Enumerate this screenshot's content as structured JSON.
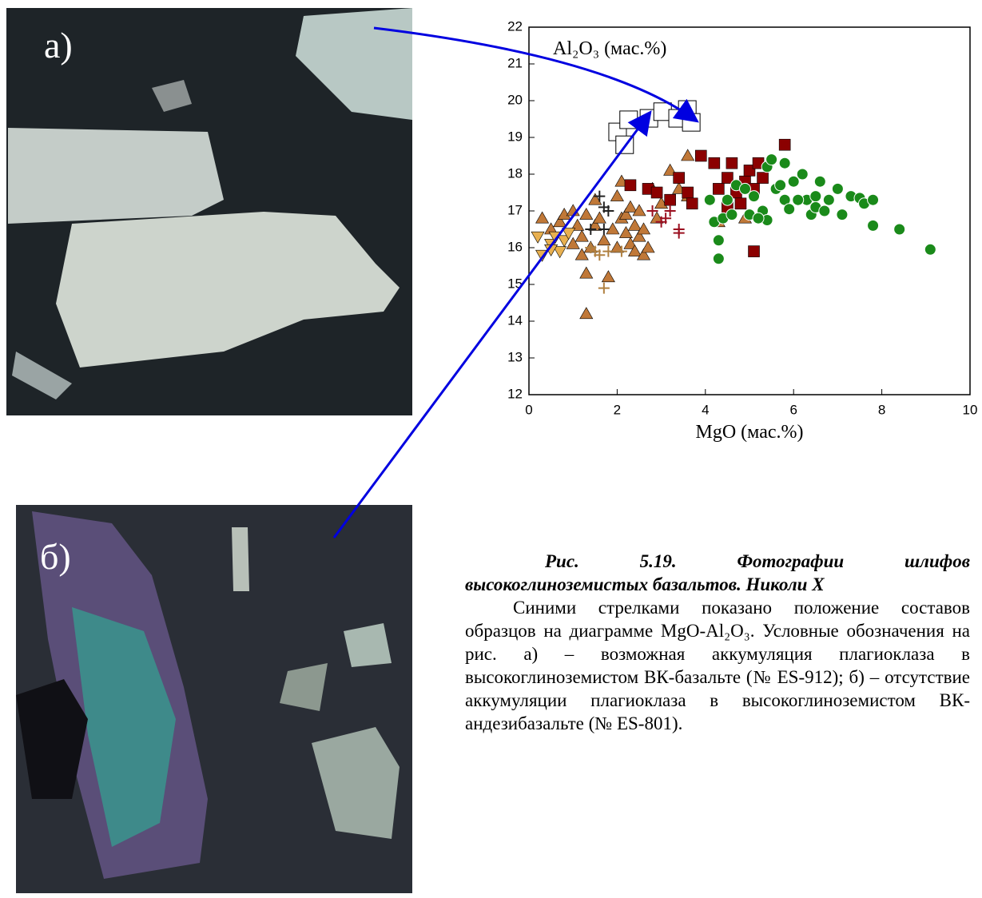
{
  "photos": {
    "a_label": "а)",
    "b_label": "б)"
  },
  "chart_data": {
    "type": "scatter",
    "xlabel": "MgO (мас.%)",
    "ylabel": "Al₂O₃ (мас.%)",
    "xlim": [
      0,
      10
    ],
    "xticks": [
      0,
      2,
      4,
      6,
      8,
      10
    ],
    "ylim": [
      12,
      22
    ],
    "yticks": [
      12,
      13,
      14,
      15,
      16,
      17,
      18,
      19,
      20,
      21,
      22
    ],
    "series": [
      {
        "color": "#ffffff",
        "marker": "big-square",
        "x": [
          2.01,
          2.17,
          2.26,
          2.72,
          3.03,
          3.37,
          3.59,
          3.68
        ],
        "values": [
          19.15,
          18.8,
          19.48,
          19.52,
          19.7,
          19.52,
          19.76,
          19.41
        ]
      },
      {
        "color": "#c07838",
        "marker": "triangle",
        "x": [
          0.3,
          0.5,
          0.7,
          0.8,
          1.0,
          1.1,
          1.2,
          1.3,
          1.3,
          1.3,
          1.4,
          1.5,
          1.5,
          1.6,
          1.7,
          1.8,
          1.9,
          2.0,
          2.0,
          2.1,
          2.2,
          2.2,
          2.3,
          2.3,
          2.4,
          2.4,
          2.5,
          2.5,
          2.6,
          2.6,
          2.7,
          2.8,
          1.0,
          1.2,
          2.1,
          3.0,
          3.2,
          3.4,
          3.6,
          3.6,
          4.3,
          4.9,
          2.9
        ],
        "values": [
          16.8,
          16.5,
          16.7,
          16.9,
          17.0,
          16.6,
          16.3,
          16.9,
          15.3,
          14.2,
          16.0,
          16.6,
          17.3,
          16.8,
          16.2,
          15.2,
          16.5,
          17.4,
          16.0,
          16.8,
          16.4,
          16.9,
          16.1,
          17.1,
          16.6,
          15.9,
          16.3,
          17.0,
          16.5,
          15.8,
          16.0,
          17.6,
          16.1,
          15.8,
          17.8,
          17.2,
          18.1,
          17.6,
          18.5,
          17.4,
          16.7,
          16.8,
          16.8
        ]
      },
      {
        "color": "#e8b050",
        "marker": "down-triangle",
        "x": [
          0.2,
          0.3,
          0.5,
          0.6,
          0.7,
          0.8,
          0.9,
          0.5
        ],
        "values": [
          16.3,
          15.8,
          16.1,
          16.3,
          15.9,
          16.2,
          16.4,
          15.95
        ]
      },
      {
        "color": "#8b0000",
        "marker": "square",
        "x": [
          2.3,
          2.7,
          2.9,
          3.2,
          3.4,
          3.6,
          3.7,
          3.9,
          4.2,
          4.3,
          4.5,
          4.6,
          4.7,
          4.8,
          4.9,
          5.0,
          5.1,
          5.2,
          5.3,
          5.8,
          5.1,
          4.5
        ],
        "values": [
          17.7,
          17.6,
          17.5,
          17.3,
          17.9,
          17.5,
          17.2,
          18.5,
          18.3,
          17.6,
          17.9,
          18.3,
          17.5,
          17.2,
          17.8,
          18.1,
          17.6,
          18.3,
          17.9,
          18.8,
          15.9,
          17.1
        ]
      },
      {
        "color": "#1a8a1a",
        "marker": "circle",
        "x": [
          4.3,
          4.3,
          4.2,
          4.4,
          4.6,
          4.5,
          4.1,
          4.7,
          4.9,
          5.0,
          5.1,
          5.3,
          5.4,
          5.4,
          5.5,
          5.6,
          5.7,
          5.8,
          5.9,
          5.8,
          6.0,
          6.2,
          6.3,
          6.4,
          6.5,
          6.5,
          6.6,
          6.7,
          6.8,
          7.0,
          7.1,
          7.3,
          7.5,
          7.6,
          7.8,
          7.8,
          8.4,
          9.1,
          5.2,
          6.1
        ],
        "values": [
          15.7,
          16.2,
          16.7,
          16.8,
          16.9,
          17.3,
          17.3,
          17.7,
          17.6,
          16.9,
          17.4,
          17.0,
          16.75,
          18.2,
          18.4,
          17.6,
          17.7,
          17.3,
          17.05,
          18.3,
          17.8,
          18.0,
          17.3,
          16.9,
          17.4,
          17.1,
          17.8,
          17.0,
          17.3,
          17.6,
          16.9,
          17.4,
          17.35,
          17.2,
          17.3,
          16.6,
          16.5,
          15.95,
          16.8,
          17.3
        ]
      },
      {
        "color": "#222222",
        "marker": "cross",
        "x": [
          1.6,
          1.7,
          1.8,
          1.4,
          1.7
        ],
        "values": [
          17.4,
          17.1,
          17.0,
          16.5,
          16.5
        ]
      },
      {
        "color": "#9b1020",
        "marker": "cross",
        "x": [
          2.8,
          3.0,
          3.1,
          3.2,
          3.4,
          3.4
        ],
        "values": [
          17.0,
          16.7,
          16.8,
          17.0,
          16.5,
          16.4
        ]
      },
      {
        "color": "#b08040",
        "marker": "cross",
        "x": [
          1.4,
          1.5,
          1.6,
          1.8,
          2.1,
          1.7
        ],
        "values": [
          16.0,
          15.9,
          15.8,
          15.9,
          15.9,
          14.9
        ]
      }
    ]
  },
  "caption": {
    "title": "Рис. 5.19. Фотографии шлифов высокоглиноземистых базальтов. Николи X",
    "body": "Синими стрелками показано положение составов образцов на диаграмме MgO-Al₂O₃. Условные обозначения на рис. а) – возможная аккумуляция плагиоклаза в высокоглиноземистом ВК-базальте (№ ES-912); б) – отсутствие аккумуляции плагиоклаза в высокоглиноземистом ВК-андезибазальте (№ ES-801)."
  }
}
